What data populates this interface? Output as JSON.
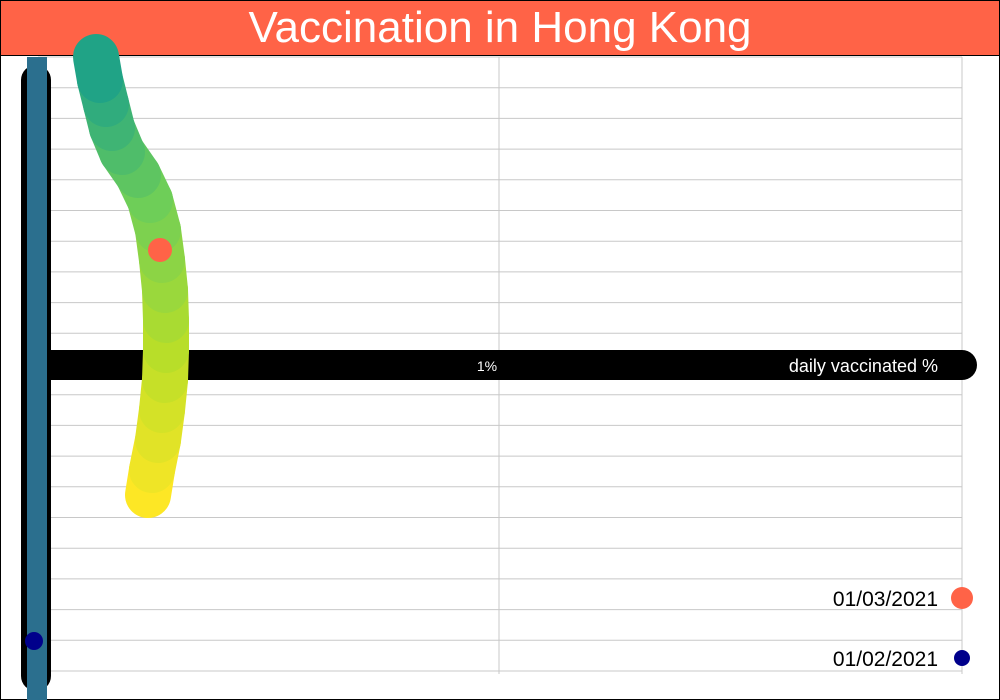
{
  "title": "Vaccination in Hong Kong",
  "colors": {
    "title_bg": "#ff6347",
    "title_text": "#ffffff",
    "axis_band": "#000000",
    "y_axis_line": "#2b6f8e",
    "grid": "#c8c8c8",
    "start_marker": "#00008b",
    "end_marker": "#ff6347"
  },
  "chart_data": {
    "type": "line",
    "xlabel": "daily vaccinated %",
    "x_ticks": [
      "1%"
    ],
    "legend": [
      {
        "label": "01/03/2021",
        "color": "#ff6347"
      },
      {
        "label": "01/02/2021",
        "color": "#00008b"
      }
    ],
    "gradient_colors": [
      "#fde725",
      "#b8de29",
      "#6ece58",
      "#20a386"
    ],
    "grid": true
  }
}
